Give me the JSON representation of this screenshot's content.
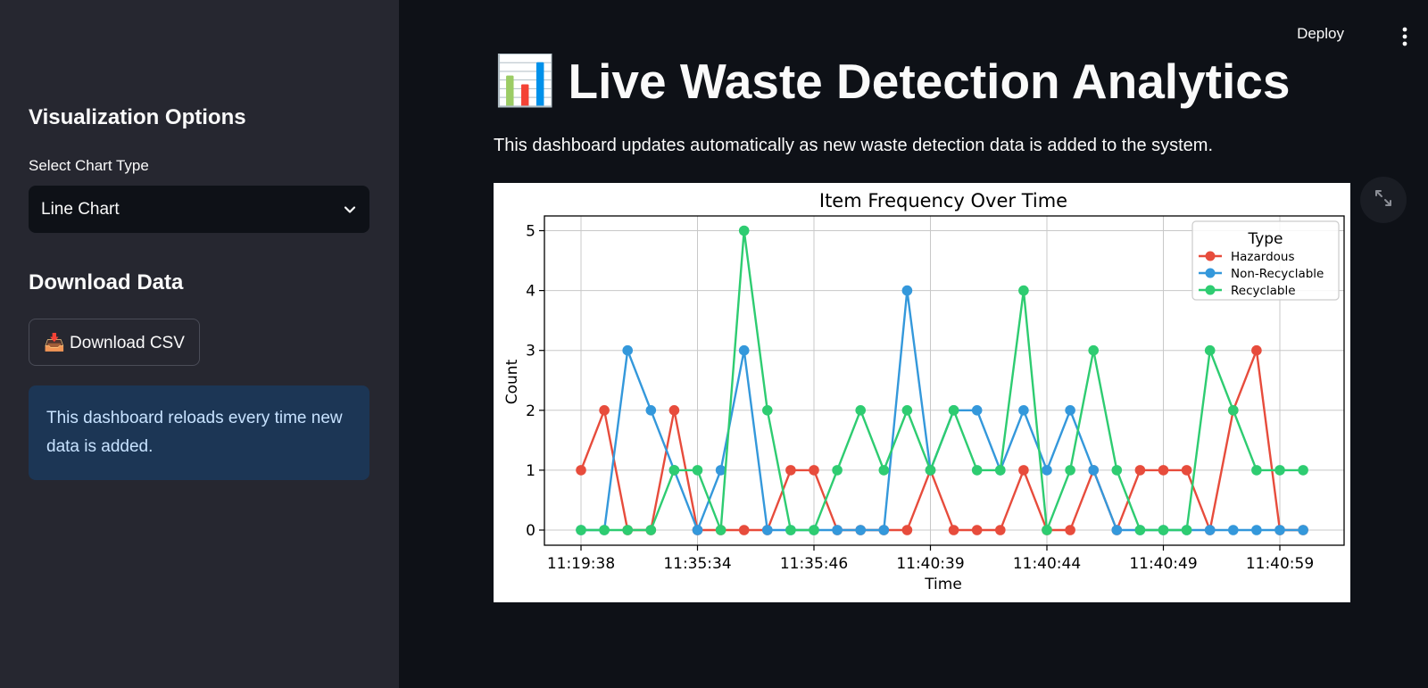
{
  "sidebar": {
    "viz_heading": "Visualization Options",
    "chart_type_label": "Select Chart Type",
    "chart_type_value": "Line Chart",
    "download_heading": "Download Data",
    "download_button": "📥 Download CSV",
    "info_text": "This dashboard reloads every time new data is added."
  },
  "header": {
    "deploy_label": "Deploy",
    "title_emoji": "📊",
    "title": "Live Waste Detection Analytics",
    "subtitle": "This dashboard updates automatically as new waste detection data is added to the system."
  },
  "chart_data": {
    "type": "line",
    "title": "Item Frequency Over Time",
    "xlabel": "Time",
    "ylabel": "Count",
    "x_tick_labels": [
      "11:19:38",
      "11:35:34",
      "11:35:46",
      "11:40:39",
      "11:40:44",
      "11:40:49",
      "11:40:59"
    ],
    "ylim": [
      0,
      5
    ],
    "yticks": [
      0,
      1,
      2,
      3,
      4,
      5
    ],
    "grid": true,
    "legend_title": "Type",
    "legend_position": "top-right",
    "series": [
      {
        "name": "Hazardous",
        "color": "#e74c3c",
        "values": [
          1,
          2,
          0,
          0,
          2,
          0,
          0,
          0,
          0,
          1,
          1,
          0,
          0,
          0,
          0,
          1,
          0,
          0,
          0,
          1,
          0,
          0,
          1,
          0,
          1,
          1,
          1,
          0,
          2,
          3,
          0,
          0
        ]
      },
      {
        "name": "Non-Recyclable",
        "color": "#3498db",
        "values": [
          0,
          0,
          3,
          2,
          1,
          0,
          1,
          3,
          0,
          0,
          0,
          0,
          0,
          0,
          4,
          1,
          2,
          2,
          1,
          2,
          1,
          2,
          1,
          0,
          0,
          0,
          0,
          0,
          0,
          0,
          0,
          0
        ]
      },
      {
        "name": "Recyclable",
        "color": "#2ecc71",
        "values": [
          0,
          0,
          0,
          0,
          1,
          1,
          0,
          5,
          2,
          0,
          0,
          1,
          2,
          1,
          2,
          1,
          2,
          1,
          1,
          4,
          0,
          1,
          3,
          1,
          0,
          0,
          0,
          3,
          2,
          1,
          1,
          1
        ]
      }
    ]
  }
}
